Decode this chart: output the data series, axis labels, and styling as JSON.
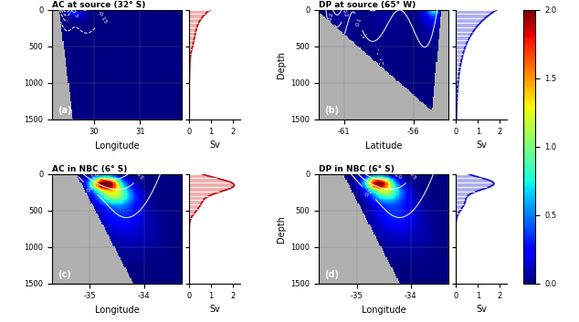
{
  "panels": [
    {
      "idx": 0,
      "label": "(a)",
      "title": "AC at source (32° S)",
      "xlabel": "Longitude",
      "xlim": [
        29.1,
        31.9
      ],
      "xticks": [
        30,
        31
      ],
      "water_type": "AC",
      "location": "source",
      "side_color": "#bb1111",
      "side_fill": "#f0a0a0",
      "has_ylabel": false
    },
    {
      "idx": 1,
      "label": "(b)",
      "title": "DP at source (65° W)",
      "xlabel": "Latitude",
      "xlim": [
        -62.8,
        -53.5
      ],
      "xticks": [
        -61,
        -56
      ],
      "water_type": "DP",
      "location": "source",
      "side_color": "#1111bb",
      "side_fill": "#a0a0f0",
      "has_ylabel": true
    },
    {
      "idx": 2,
      "label": "(c)",
      "title": "AC in NBC (6° S)",
      "xlabel": "Longitude",
      "xlim": [
        -35.7,
        -33.3
      ],
      "xticks": [
        -35,
        -34
      ],
      "water_type": "AC",
      "location": "NBC",
      "side_color": "#bb1111",
      "side_fill": "#f0a0a0",
      "has_ylabel": false
    },
    {
      "idx": 3,
      "label": "(d)",
      "title": "DP in NBC (6° S)",
      "xlabel": "Longitude",
      "xlim": [
        -35.7,
        -33.3
      ],
      "xticks": [
        -35,
        -34
      ],
      "water_type": "DP",
      "location": "NBC",
      "side_color": "#1111bb",
      "side_fill": "#a0a0f0",
      "has_ylabel": true
    }
  ],
  "ylim": [
    1500,
    0
  ],
  "yticks": [
    0,
    500,
    1000,
    1500
  ],
  "depth_label": "Depth",
  "sv_label": "Sv",
  "sv_xlim": [
    0,
    2.3
  ],
  "sv_xticks": [
    0,
    1,
    2
  ],
  "clim": [
    0,
    2
  ],
  "cticks": [
    0,
    0.5,
    1.0,
    1.5,
    2.0
  ],
  "land_color": "#b0b0b0",
  "figsize": [
    6.34,
    3.53
  ],
  "dpi": 100
}
